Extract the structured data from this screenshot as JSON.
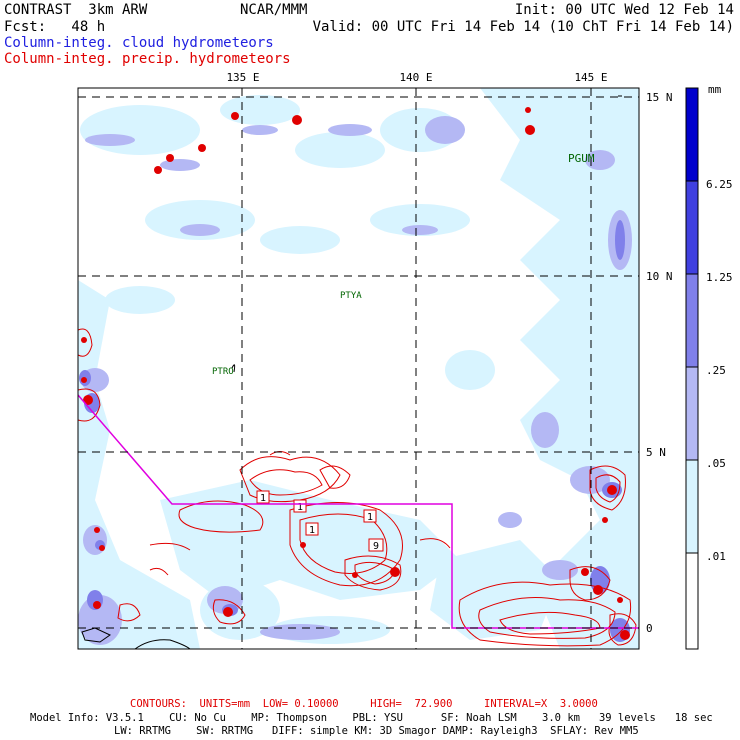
{
  "header": {
    "model": "CONTRAST  3km ARW",
    "org": "NCAR/MMM",
    "init": "Init: 00 UTC Wed 12 Feb 14",
    "fcst": "Fcst:   48 h",
    "valid": "Valid: 00 UTC Fri 14 Feb 14 (10 ChT Fri 14 Feb 14)",
    "field1": "Column-integ. cloud hydrometeors",
    "field2": "Column-integ. precip. hydrometeors"
  },
  "axes": {
    "lon_labels": [
      "135 E",
      "140 E",
      "145 E"
    ],
    "lat_labels": [
      "15 N",
      "10 N",
      "5 N",
      "0"
    ]
  },
  "stations": [
    "PGUM",
    "PTYA",
    "PTRO"
  ],
  "contour_labels": [
    "1",
    "1",
    "1",
    "1",
    "9"
  ],
  "colorbar": {
    "unit": "mm",
    "levels": [
      ".01",
      ".05",
      ".25",
      "1.25",
      "6.25"
    ],
    "colors": [
      "#d8f4ff",
      "#b4b8f4",
      "#8080ea",
      "#4040e0",
      "#0000cc"
    ]
  },
  "footer": {
    "contours": "CONTOURS:  UNITS=mm  LOW= 0.10000     HIGH=  72.900     INTERVAL=X  3.0000",
    "line1": "Model Info: V3.5.1    CU: No Cu    MP: Thompson    PBL: YSU      SF: Noah LSM    3.0 km   39 levels   18 sec",
    "line2": "LW: RRTMG    SW: RRTMG   DIFF: simple KM: 3D Smagor DAMP: Rayleigh3  SFLAY: Rev MM5"
  },
  "colors": {
    "cloud_field": "#2020e0",
    "precip_field": "#e00000",
    "domain_box": "#e000e0",
    "station": "#006400"
  }
}
